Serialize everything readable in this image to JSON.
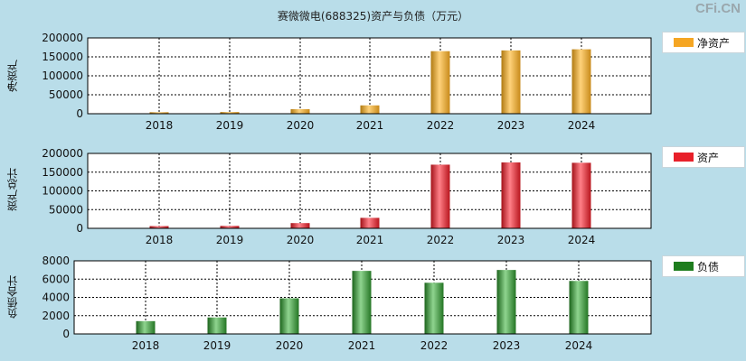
{
  "title": "赛微微电(688325)资产与负债（万元）",
  "watermark": "CFi.CN",
  "chart_data": [
    {
      "type": "bar",
      "title": "净资产",
      "ylabel": "净资产",
      "legend": "净资产",
      "color": "#f5a623",
      "categories": [
        "2018",
        "2019",
        "2020",
        "2021",
        "2022",
        "2023",
        "2024"
      ],
      "values": [
        4000,
        4500,
        12000,
        22000,
        165000,
        167000,
        170000
      ],
      "yticks": [
        "0",
        "50000",
        "100000",
        "150000",
        "200000"
      ],
      "ylim": [
        0,
        200000
      ],
      "grid": true
    },
    {
      "type": "bar",
      "title": "资产总计",
      "ylabel": "资产总计",
      "legend": "资产",
      "color": "#e8202a",
      "categories": [
        "2018",
        "2019",
        "2020",
        "2021",
        "2022",
        "2023",
        "2024"
      ],
      "values": [
        6000,
        6500,
        14000,
        28000,
        170000,
        176000,
        175000
      ],
      "yticks": [
        "0",
        "50000",
        "100000",
        "150000",
        "200000"
      ],
      "ylim": [
        0,
        200000
      ],
      "grid": true
    },
    {
      "type": "bar",
      "title": "负债合计",
      "ylabel": "负债合计",
      "legend": "负债",
      "color": "#2a8a2a",
      "categories": [
        "2018",
        "2019",
        "2020",
        "2021",
        "2022",
        "2023",
        "2024"
      ],
      "values": [
        1400,
        1800,
        3900,
        6900,
        5600,
        7000,
        5800
      ],
      "yticks": [
        "0",
        "2000",
        "4000",
        "6000",
        "8000"
      ],
      "ylim": [
        0,
        8000
      ],
      "grid": true
    }
  ]
}
